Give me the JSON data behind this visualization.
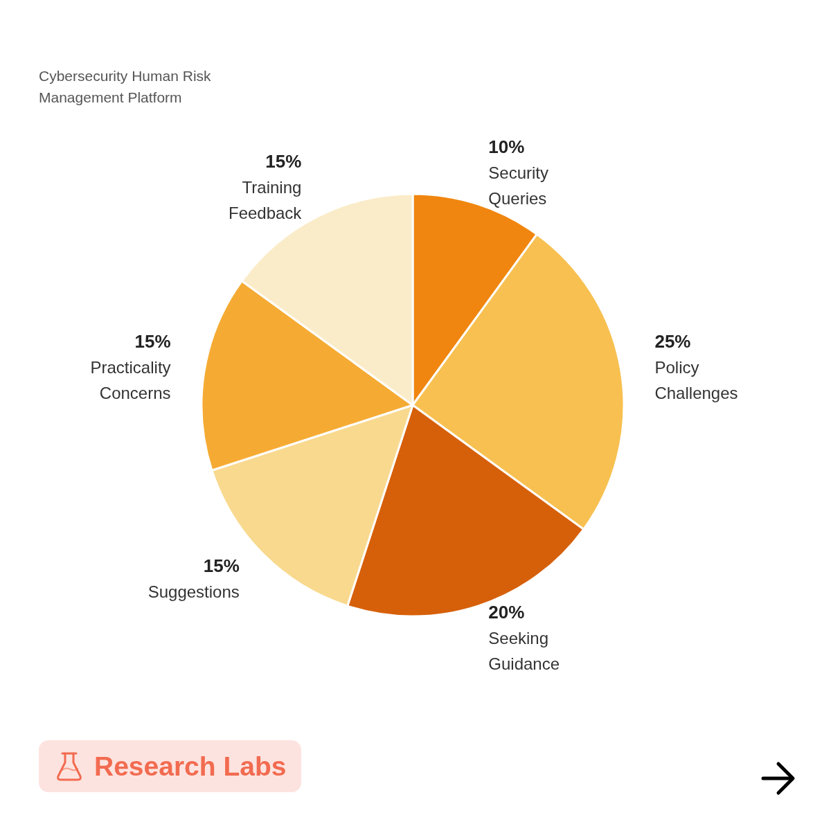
{
  "chart_data": {
    "type": "pie",
    "subtitle": "Cybersecurity Human Risk Management Platform",
    "categories": [
      "Security Queries",
      "Policy Challenges",
      "Seeking Guidance",
      "Suggestions",
      "Practicality Concerns",
      "Training Feedback"
    ],
    "values": [
      10,
      25,
      20,
      15,
      15,
      15
    ],
    "colors": [
      "#f0860f",
      "#f7c050",
      "#d6600a",
      "#f8d98e",
      "#f5ab33",
      "#fbecc9"
    ],
    "value_labels": [
      "10%",
      "25%",
      "20%",
      "15%",
      "15%",
      "15%"
    ],
    "annotations": [
      "Research Labs"
    ]
  }
}
